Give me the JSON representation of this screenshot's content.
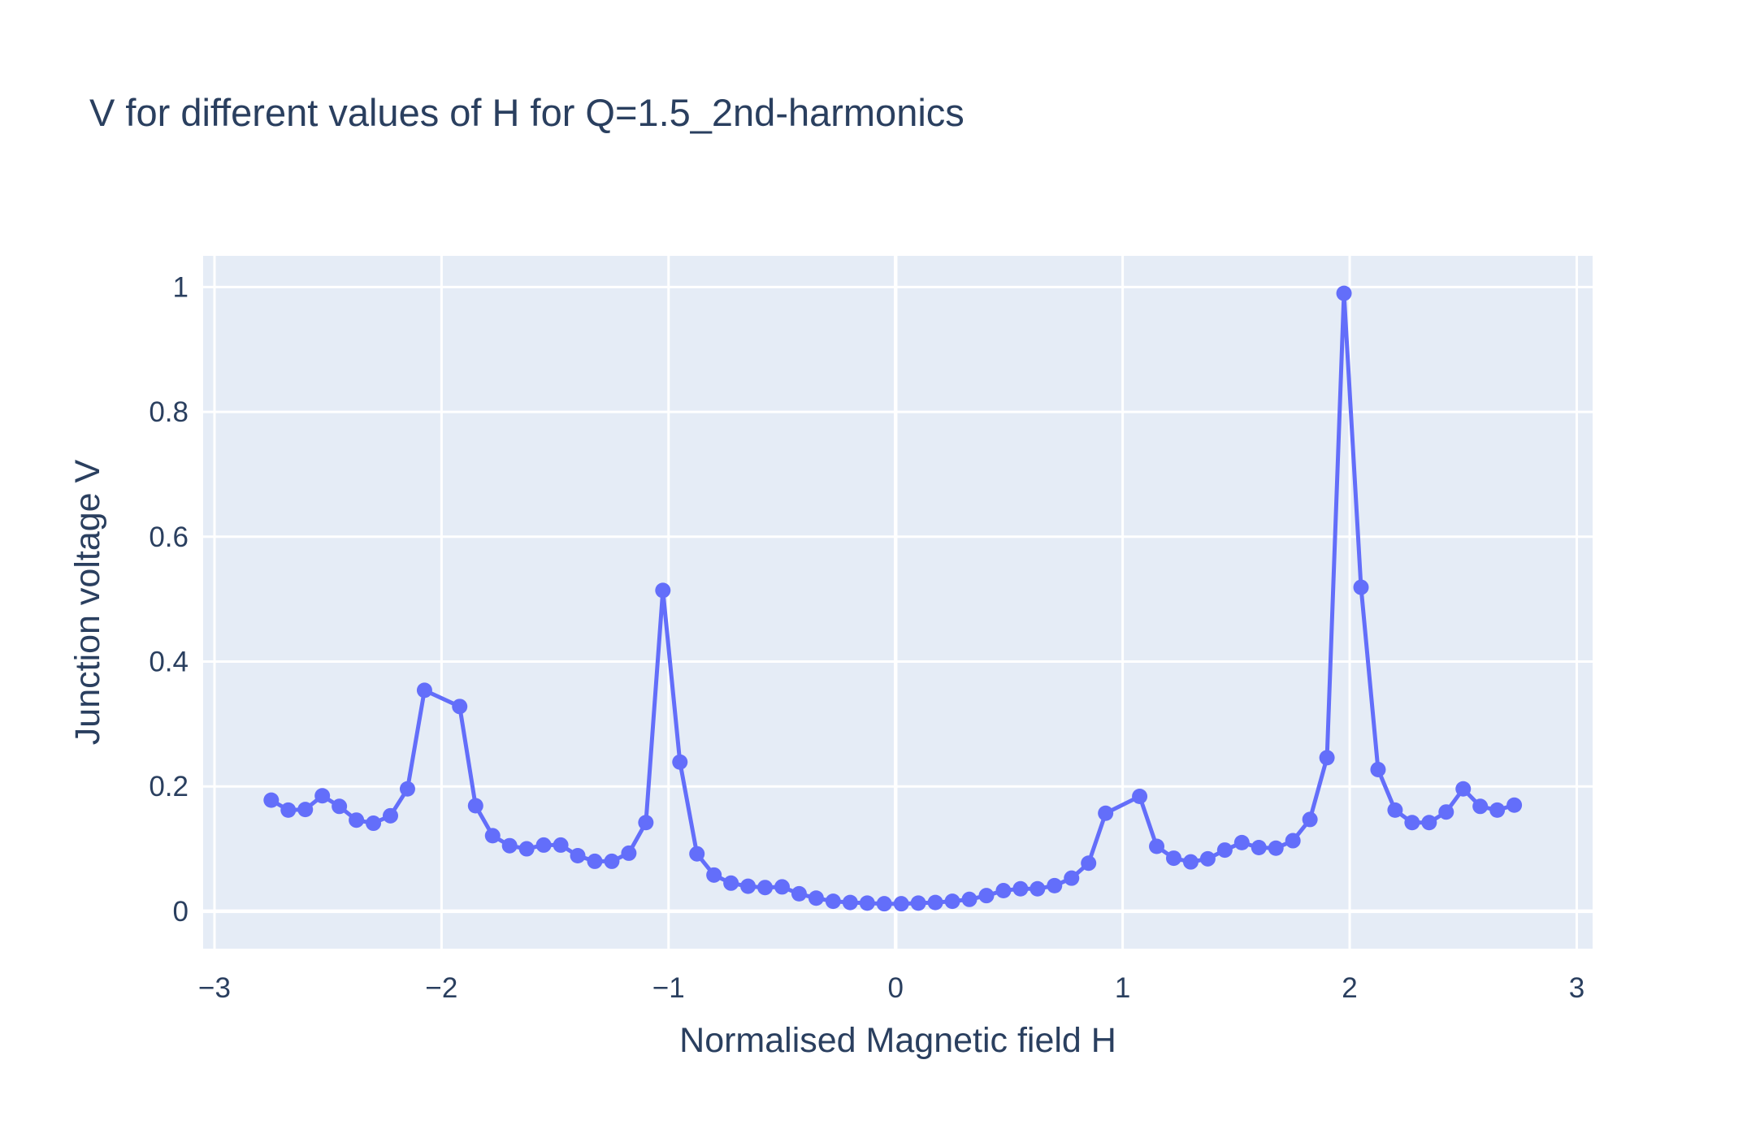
{
  "colors": {
    "plot_background": "#e5ecf6",
    "grid": "#ffffff",
    "series_line": "#636efa",
    "text": "#2a3f5f"
  },
  "chart_data": {
    "type": "line",
    "mode": "lines+markers",
    "title": "V for different values of H for Q=1.5_2nd-harmonics",
    "xlabel": "Normalised Magnetic field H",
    "ylabel": "Junction voltage V",
    "xlim": [
      -3.05,
      3.07
    ],
    "ylim": [
      -0.06,
      1.05
    ],
    "xticks": [
      -3,
      -2,
      -1,
      0,
      1,
      2,
      3
    ],
    "xtick_labels": [
      "−3",
      "−2",
      "−1",
      "0",
      "1",
      "2",
      "3"
    ],
    "yticks": [
      0,
      0.2,
      0.4,
      0.6,
      0.8,
      1
    ],
    "ytick_labels": [
      "0",
      "0.2",
      "0.4",
      "0.6",
      "0.8",
      "1"
    ],
    "grid": true,
    "legend": "none",
    "series": [
      {
        "x": [
          -2.75,
          -2.675,
          -2.6,
          -2.525,
          -2.45,
          -2.375,
          -2.3,
          -2.225,
          -2.15,
          -2.075,
          -1.92,
          -1.85,
          -1.775,
          -1.7,
          -1.625,
          -1.55,
          -1.475,
          -1.4,
          -1.325,
          -1.25,
          -1.175,
          -1.1,
          -1.025,
          -0.95,
          -0.875,
          -0.8,
          -0.725,
          -0.65,
          -0.575,
          -0.5,
          -0.425,
          -0.35,
          -0.275,
          -0.2,
          -0.125,
          -0.05,
          0.025,
          0.1,
          0.175,
          0.25,
          0.325,
          0.4,
          0.475,
          0.55,
          0.625,
          0.7,
          0.775,
          0.85,
          0.925,
          1.075,
          1.15,
          1.225,
          1.3,
          1.375,
          1.45,
          1.525,
          1.6,
          1.675,
          1.75,
          1.825,
          1.9,
          1.975,
          2.05,
          2.125,
          2.2,
          2.275,
          2.35,
          2.425,
          2.5,
          2.575,
          2.65,
          2.725
        ],
        "y": [
          0.178,
          0.162,
          0.163,
          0.185,
          0.168,
          0.146,
          0.141,
          0.153,
          0.196,
          0.354,
          0.328,
          0.169,
          0.121,
          0.105,
          0.1,
          0.106,
          0.106,
          0.089,
          0.08,
          0.08,
          0.093,
          0.142,
          0.514,
          0.239,
          0.092,
          0.058,
          0.045,
          0.04,
          0.038,
          0.039,
          0.028,
          0.021,
          0.016,
          0.014,
          0.013,
          0.012,
          0.012,
          0.013,
          0.014,
          0.016,
          0.019,
          0.025,
          0.033,
          0.036,
          0.036,
          0.041,
          0.053,
          0.077,
          0.157,
          0.184,
          0.104,
          0.085,
          0.079,
          0.084,
          0.098,
          0.11,
          0.102,
          0.101,
          0.113,
          0.147,
          0.246,
          0.99,
          0.519,
          0.227,
          0.162,
          0.142,
          0.142,
          0.159,
          0.196,
          0.168,
          0.162,
          0.17
        ]
      }
    ]
  }
}
